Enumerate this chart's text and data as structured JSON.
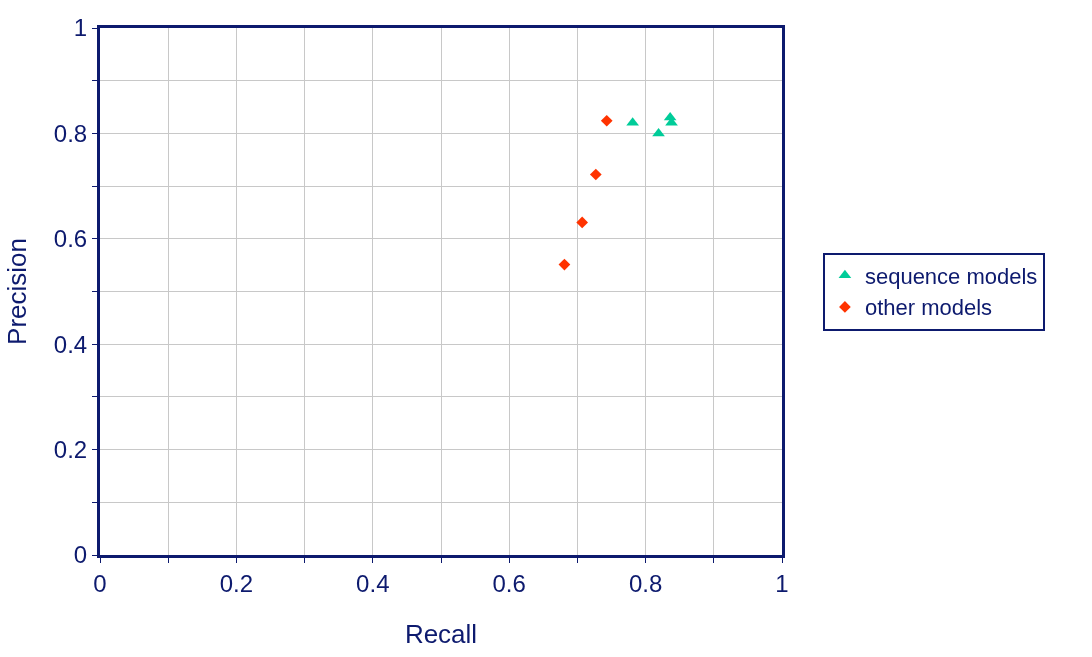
{
  "chart_data": {
    "type": "scatter",
    "xlabel": "Recall",
    "ylabel": "Precision",
    "xlim": [
      0,
      1
    ],
    "ylim": [
      0,
      1
    ],
    "xticks": [
      0,
      {
        "value": 0.1,
        "label": null
      },
      0.2,
      {
        "value": 0.3,
        "label": null
      },
      0.4,
      {
        "value": 0.5,
        "label": null
      },
      0.6,
      {
        "value": 0.7,
        "label": null
      },
      0.8,
      {
        "value": 0.9,
        "label": null
      },
      1
    ],
    "yticks": [
      0,
      {
        "value": 0.1,
        "label": null
      },
      0.2,
      {
        "value": 0.3,
        "label": null
      },
      0.4,
      {
        "value": 0.5,
        "label": null
      },
      0.6,
      {
        "value": 0.7,
        "label": null
      },
      0.8,
      {
        "value": 0.9,
        "label": null
      },
      1
    ],
    "grid": true,
    "legend": "right",
    "series": [
      {
        "name": "sequence models",
        "color": "#00cc99",
        "marker": "triangle",
        "x": [
          0.781,
          0.819,
          0.836,
          0.838
        ],
        "values": [
          0.82,
          0.8,
          0.83,
          0.82
        ]
      },
      {
        "name": "other models",
        "color": "#ff3300",
        "marker": "diamond",
        "x": [
          0.743,
          0.727,
          0.707,
          0.681
        ],
        "values": [
          0.824,
          0.722,
          0.631,
          0.551
        ]
      }
    ]
  }
}
